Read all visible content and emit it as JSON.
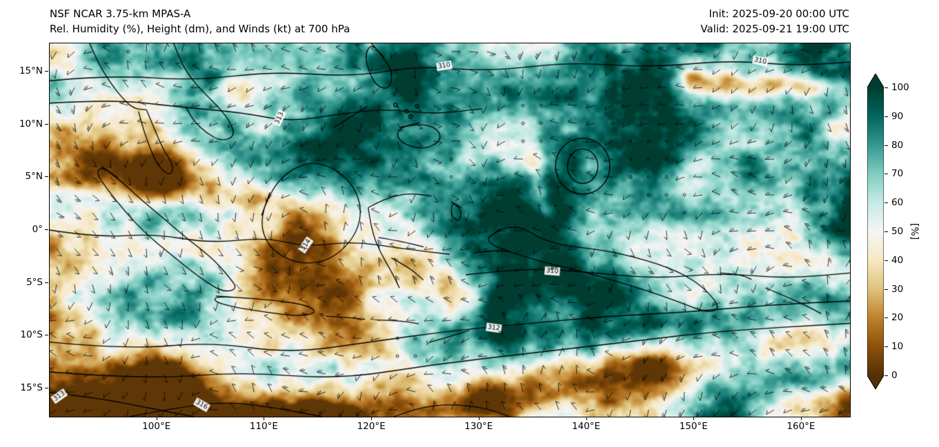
{
  "header": {
    "title": "NSF NCAR 3.75-km MPAS-A",
    "subtitle": "Rel. Humidity (%), Height (dm), and Winds (kt) at 700 hPa",
    "init_label": "Init: 2025-09-20 00:00 UTC",
    "valid_label": "Valid: 2025-09-21 19:00 UTC"
  },
  "chart_data": {
    "type": "heatmap",
    "title": "NSF NCAR 3.75-km MPAS-A",
    "subtitle": "Rel. Humidity (%), Height (dm), and Winds (kt) at 700 hPa",
    "init_time": "2025-09-20 00:00 UTC",
    "valid_time": "2025-09-21 19:00 UTC",
    "variable": "Relative Humidity (%)",
    "level": "700 hPa",
    "overlays": [
      "Geopotential height contours (dm)",
      "Wind barbs (kt)"
    ],
    "region": "Maritime Continent / Southeast Asia and western Pacific",
    "x_axis": {
      "grid": false,
      "approx_range_deg_e": [
        90,
        164.5
      ],
      "ticks": [
        {
          "label": "100°E",
          "value": 100
        },
        {
          "label": "110°E",
          "value": 110
        },
        {
          "label": "120°E",
          "value": 120
        },
        {
          "label": "130°E",
          "value": 130
        },
        {
          "label": "140°E",
          "value": 140
        },
        {
          "label": "150°E",
          "value": 150
        },
        {
          "label": "160°E",
          "value": 160
        }
      ]
    },
    "y_axis": {
      "grid": false,
      "approx_range_deg_n": [
        -17.7,
        17.7
      ],
      "ticks": [
        {
          "label": "15°N",
          "value": 15
        },
        {
          "label": "10°N",
          "value": 10
        },
        {
          "label": "5°N",
          "value": 5
        },
        {
          "label": "0°",
          "value": 0
        },
        {
          "label": "5°S",
          "value": -5
        },
        {
          "label": "10°S",
          "value": -10
        },
        {
          "label": "15°S",
          "value": -15
        }
      ]
    },
    "colorbar": {
      "label": "[%]",
      "ticks": [
        0,
        10,
        20,
        30,
        40,
        50,
        60,
        70,
        80,
        90,
        100
      ],
      "extend": "both",
      "position": "right",
      "colormap": [
        {
          "v": 0,
          "c": "#543005"
        },
        {
          "v": 10,
          "c": "#8c510a"
        },
        {
          "v": 20,
          "c": "#bf812d"
        },
        {
          "v": 30,
          "c": "#dfc27d"
        },
        {
          "v": 40,
          "c": "#f6e8c3"
        },
        {
          "v": 50,
          "c": "#f5f5f5"
        },
        {
          "v": 60,
          "c": "#c7eae5"
        },
        {
          "v": 70,
          "c": "#80cdc1"
        },
        {
          "v": 80,
          "c": "#35978f"
        },
        {
          "v": 90,
          "c": "#01665e"
        },
        {
          "v": 100,
          "c": "#003c30"
        }
      ]
    },
    "contour_labels": [
      {
        "text": "310",
        "x": 0.493,
        "y": 0.06,
        "rot": -10
      },
      {
        "text": "310",
        "x": 0.888,
        "y": 0.047,
        "rot": 12
      },
      {
        "text": "313",
        "x": 0.287,
        "y": 0.2,
        "rot": -65
      },
      {
        "text": "314",
        "x": 0.32,
        "y": 0.54,
        "rot": -55
      },
      {
        "text": "312",
        "x": 0.555,
        "y": 0.762,
        "rot": 8
      },
      {
        "text": "310",
        "x": 0.628,
        "y": 0.61,
        "rot": 5
      },
      {
        "text": "313",
        "x": 0.012,
        "y": 0.945,
        "rot": -35
      },
      {
        "text": "316",
        "x": 0.19,
        "y": 0.968,
        "rot": 30
      }
    ],
    "description": "Broad areas of 70-100% relative humidity (teal) over the Maritime Continent, Philippines and New Guinea, with dry bands of 10-50% RH (tan/brown) over the Java Sea region, a long diagonal dry band south of New Guinea, a dry strip near 5N on the west edge, and a very dry (near 0%) area in the southwest corner; black 700-hPa height contours (310-316 dm) and black wind barbs cover the full domain."
  }
}
